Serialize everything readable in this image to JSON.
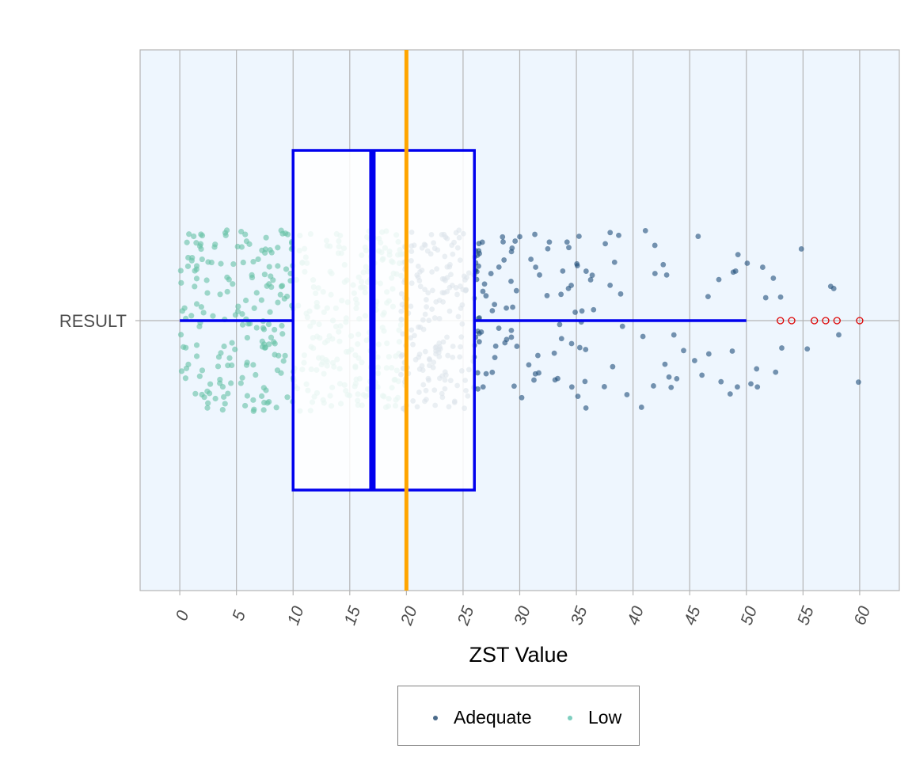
{
  "chart_data": {
    "type": "boxplot-jitter",
    "xlabel": "ZST Value",
    "category": "RESULT",
    "xlim": [
      -3.5,
      63.5
    ],
    "x_ticks": [
      "0",
      "5",
      "10",
      "15",
      "20",
      "25",
      "30",
      "35",
      "40",
      "45",
      "50",
      "55",
      "60"
    ],
    "box": {
      "whisker_low": 0,
      "q1": 10,
      "median": 17,
      "q3": 26,
      "whisker_high": 50
    },
    "outliers": [
      53,
      54,
      56,
      57,
      58,
      60
    ],
    "reference_line": 20,
    "series": [
      {
        "name": "Adequate",
        "range": [
          20,
          60
        ],
        "count": 330,
        "color": "#1f4e79"
      },
      {
        "name": "Low",
        "range": [
          0,
          20
        ],
        "count": 430,
        "color": "#66c2a5"
      }
    ],
    "colors": {
      "box": "#0000ee",
      "reference": "#ffa500",
      "outlier": "#dd0000",
      "panel": "#eef6fe",
      "grid": "#b5b5b5"
    }
  },
  "legend": {
    "items": [
      {
        "label": "Adequate",
        "color": "#4a6a8a"
      },
      {
        "label": "Low",
        "color": "#7fcfc0"
      }
    ]
  }
}
